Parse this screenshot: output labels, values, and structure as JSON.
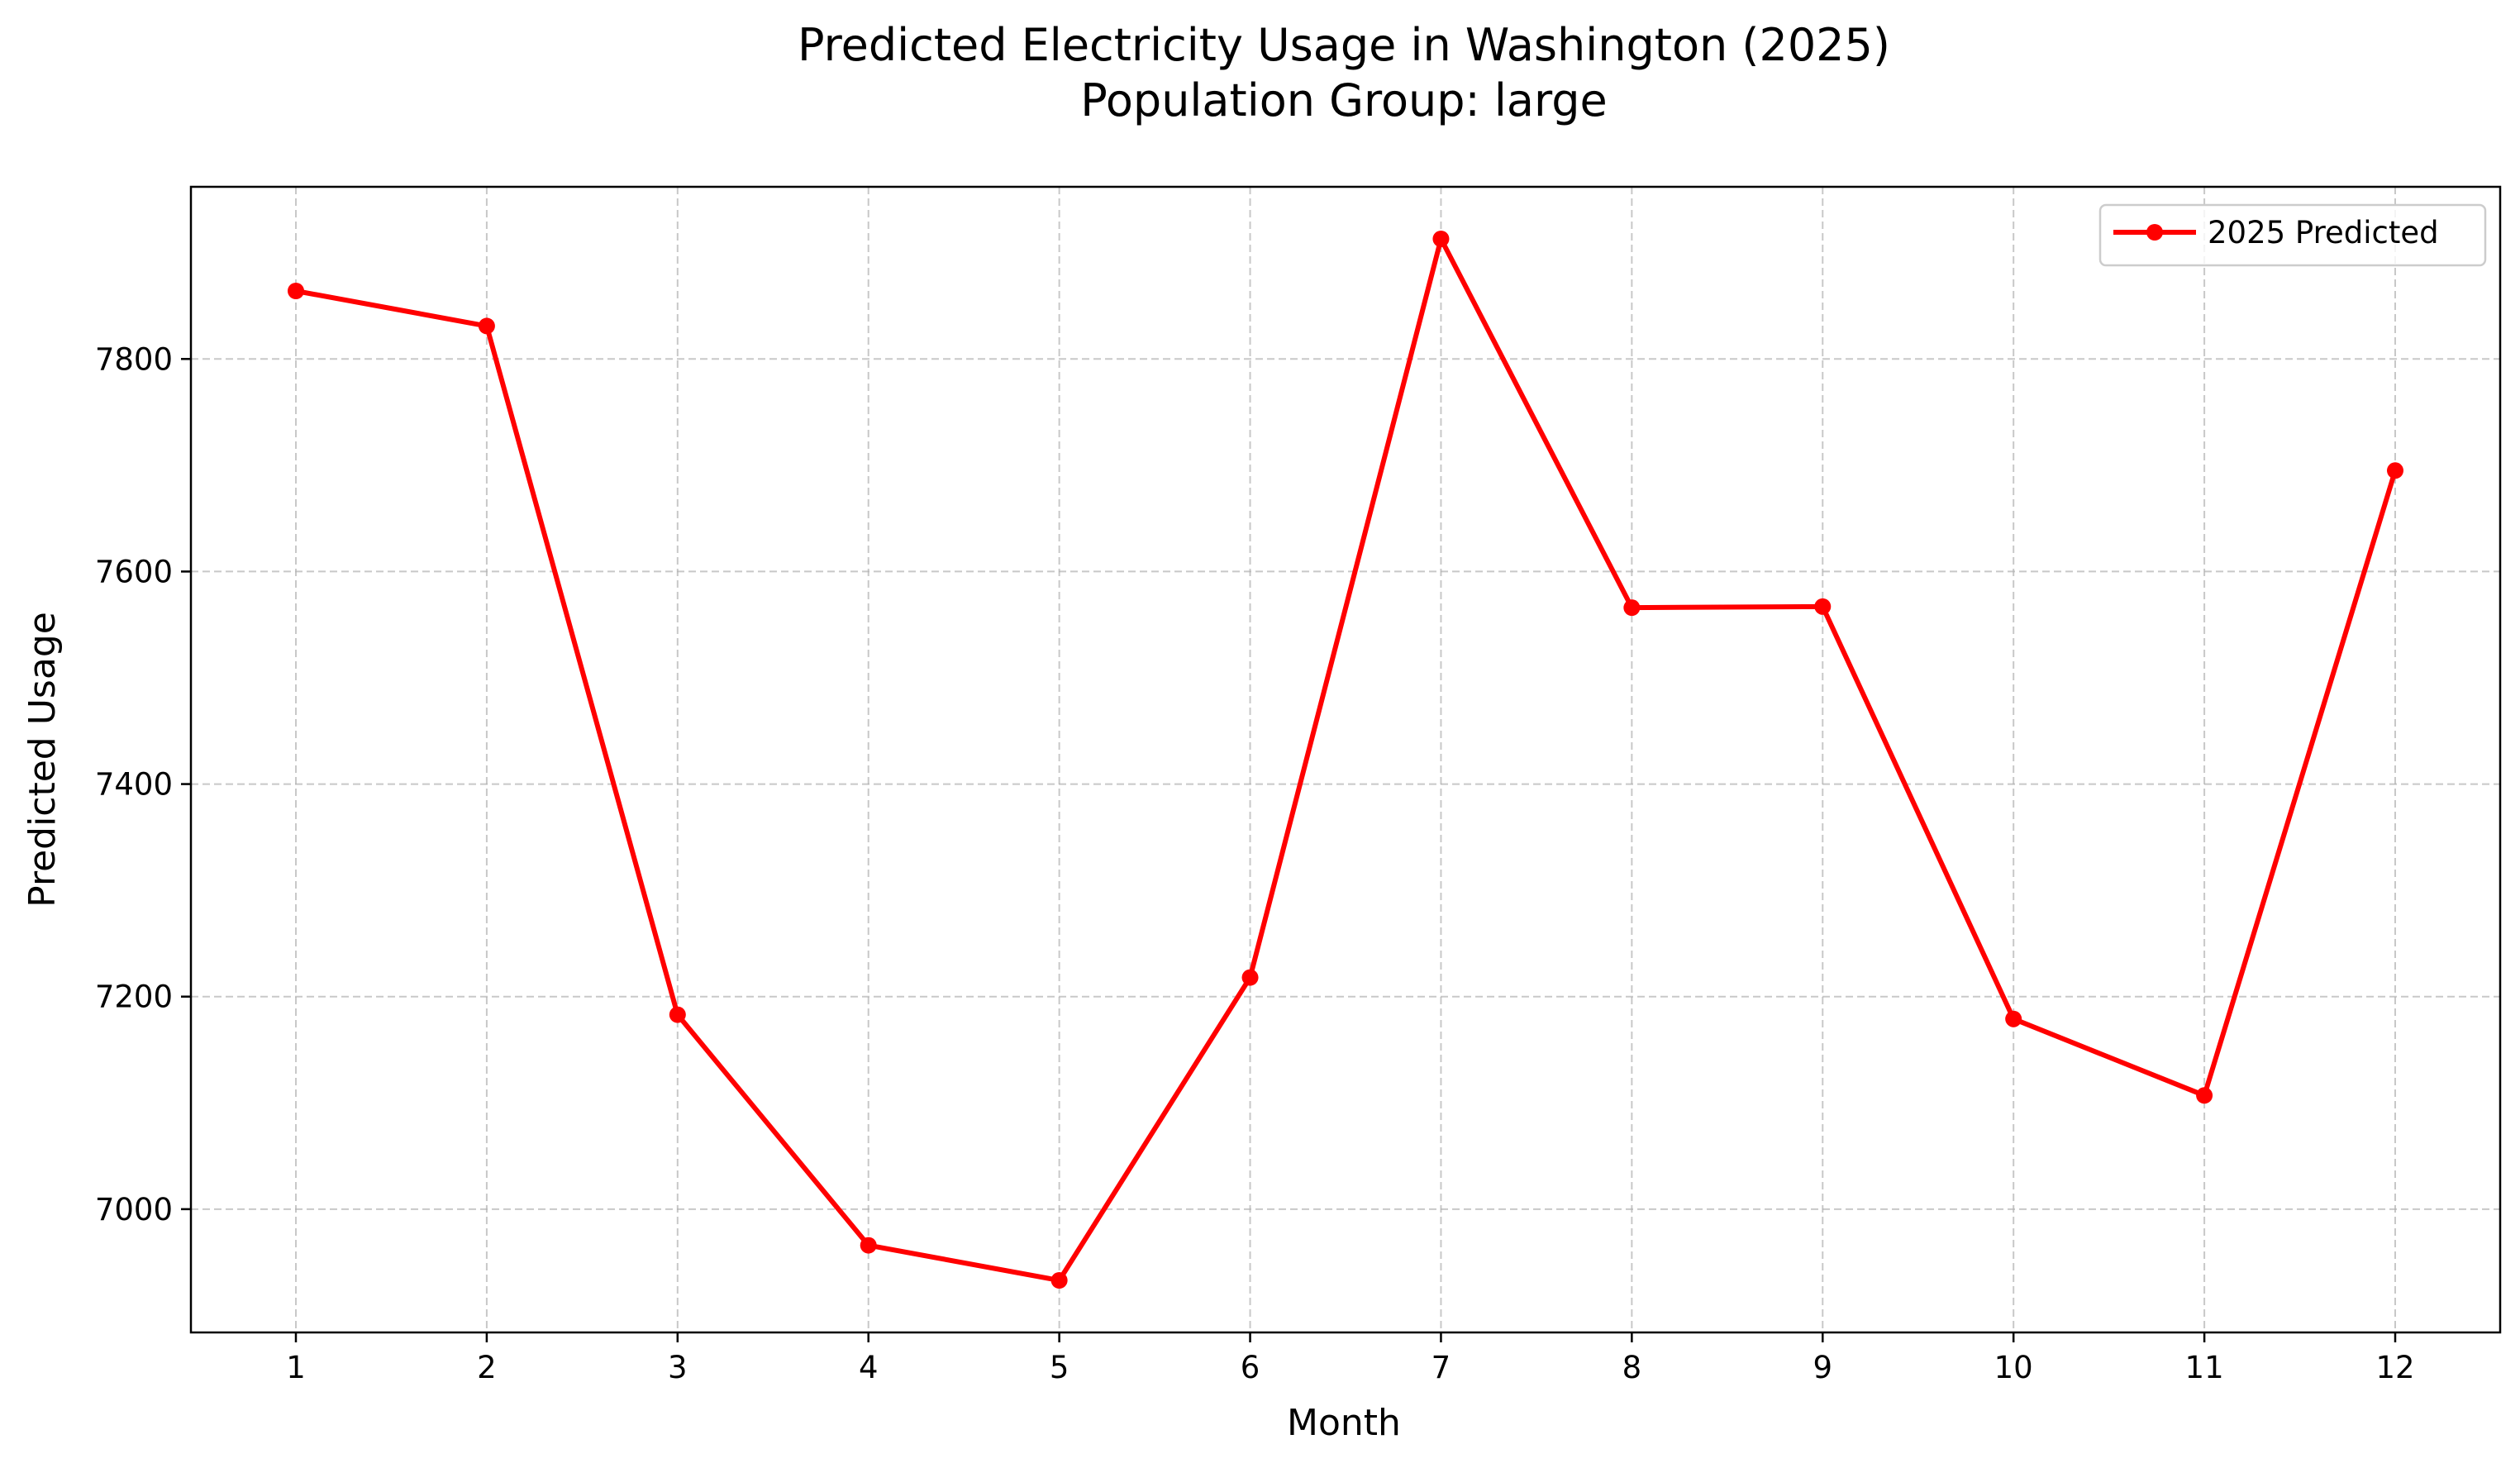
{
  "chart_data": {
    "type": "line",
    "title": "Predicted Electricity Usage in Washington (2025)",
    "subtitle": "Population Group: large",
    "xlabel": "Month",
    "ylabel": "Predicted Usage",
    "x": [
      1,
      2,
      3,
      4,
      5,
      6,
      7,
      8,
      9,
      10,
      11,
      12
    ],
    "series": [
      {
        "name": "2025 Predicted",
        "color": "#ff0000",
        "marker": "circle",
        "values": [
          7864,
          7831,
          7183,
          6966,
          6933,
          7218,
          7913,
          7566,
          7567,
          7179,
          7107,
          7695
        ]
      }
    ],
    "xlim": [
      0.45,
      12.55
    ],
    "ylim": [
      6884,
      7962
    ],
    "xticks": [
      1,
      2,
      3,
      4,
      5,
      6,
      7,
      8,
      9,
      10,
      11,
      12
    ],
    "yticks": [
      7000,
      7200,
      7400,
      7600,
      7800
    ],
    "grid": true,
    "grid_style": "dashed",
    "legend_position": "top-right"
  }
}
